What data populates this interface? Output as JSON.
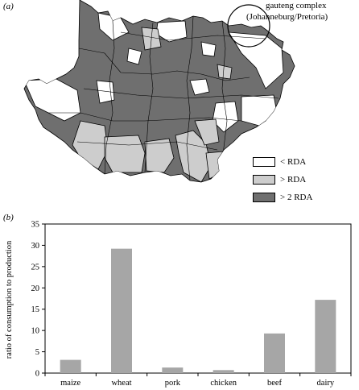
{
  "panel_a": {
    "label": "(a)",
    "callout_line1": "gauteng complex",
    "callout_line2": "(Johanneburg/Pretoria)",
    "legend": [
      {
        "label": "< RDA",
        "color": "#ffffff"
      },
      {
        "label": "> RDA",
        "color": "#cdcdcd"
      },
      {
        "label": "> 2 RDA",
        "color": "#6f6f6f"
      }
    ]
  },
  "panel_b": {
    "label": "(b)"
  },
  "chart_data": {
    "type": "bar",
    "categories": [
      "maize",
      "wheat",
      "pork",
      "chicken",
      "beef",
      "dairy"
    ],
    "values": [
      3.1,
      29.2,
      1.3,
      0.7,
      9.3,
      17.2
    ],
    "ylabel": "ratio of consumption to production",
    "xlabel": "",
    "ylim": [
      0,
      35
    ],
    "yticks": [
      0,
      5,
      10,
      15,
      20,
      25,
      30,
      35
    ],
    "grid": false,
    "bar_color": "#a6a6a6"
  }
}
